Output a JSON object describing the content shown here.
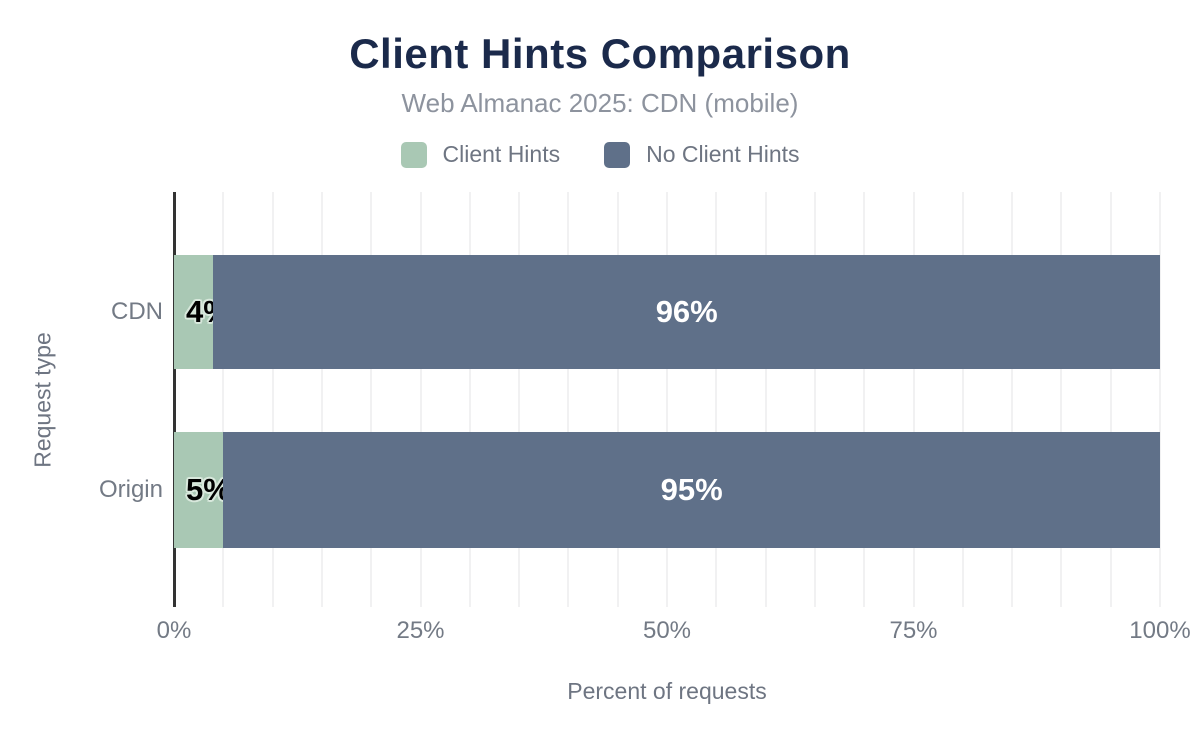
{
  "header": {
    "title": "Client Hints Comparison",
    "subtitle": "Web Almanac 2025: CDN (mobile)"
  },
  "legend": {
    "position": "top",
    "items": [
      {
        "label": "Client Hints",
        "color": "#a9c8b4"
      },
      {
        "label": "No Client Hints",
        "color": "#5f7089"
      }
    ]
  },
  "chart_data": {
    "type": "bar",
    "orientation": "horizontal",
    "stacked": true,
    "title": "Client Hints Comparison",
    "subtitle": "Web Almanac 2025: CDN (mobile)",
    "categories": [
      "CDN",
      "Origin"
    ],
    "series": [
      {
        "name": "Client Hints",
        "color": "#a9c8b4",
        "values": [
          4,
          5
        ],
        "labels": [
          "4%",
          "5%"
        ],
        "label_style": "dark"
      },
      {
        "name": "No Client Hints",
        "color": "#5f7089",
        "values": [
          96,
          95
        ],
        "labels": [
          "96%",
          "95%"
        ],
        "label_style": "light"
      }
    ],
    "xlabel": "Percent of requests",
    "ylabel": "Request type",
    "xlim": [
      0,
      100
    ],
    "xticks": [
      {
        "value": 0,
        "label": "0%"
      },
      {
        "value": 25,
        "label": "25%"
      },
      {
        "value": 50,
        "label": "50%"
      },
      {
        "value": 75,
        "label": "75%"
      },
      {
        "value": 100,
        "label": "100%"
      }
    ],
    "grid": {
      "show": true,
      "interval_pct": 5,
      "color": "#f1f1f2"
    },
    "legend_position": "top"
  },
  "colors": {
    "title": "#1b2a4b",
    "subtitle": "#8d939e",
    "axis_text": "#737a85",
    "axis_line": "#333333",
    "gridline": "#f1f1f2",
    "background": "#ffffff"
  }
}
